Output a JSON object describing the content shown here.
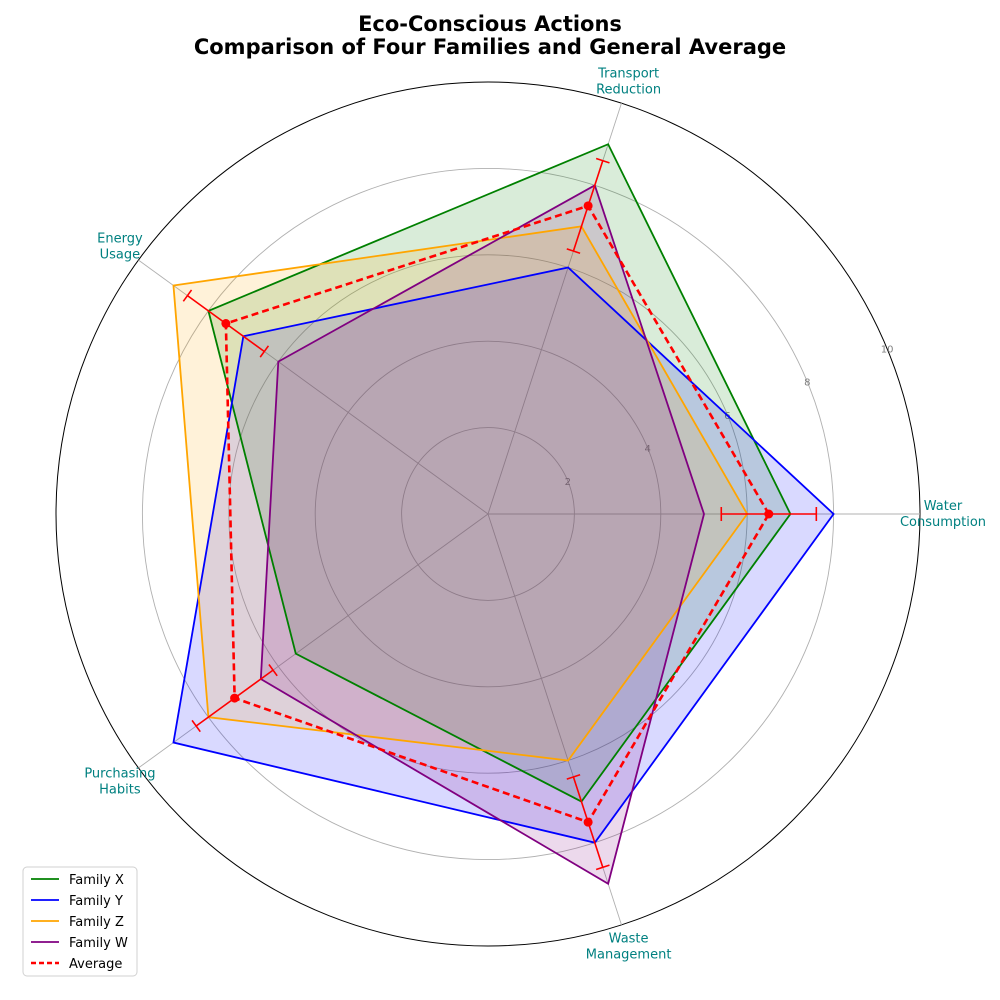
{
  "chart_data": {
    "type": "radar",
    "title_lines": [
      "Eco-Conscious Actions",
      "Comparison of Four Families and General Average"
    ],
    "axes": [
      {
        "lines": [
          "Water",
          "Consumption"
        ]
      },
      {
        "lines": [
          "Transport",
          "Reduction"
        ]
      },
      {
        "lines": [
          "Energy",
          "Usage"
        ]
      },
      {
        "lines": [
          "Purchasing",
          "Habits"
        ]
      },
      {
        "lines": [
          "Waste",
          "Management"
        ]
      }
    ],
    "rlim": [
      0,
      10
    ],
    "rticks": [
      2,
      4,
      6,
      8,
      10
    ],
    "grid": true,
    "legend_position": "lower-left",
    "series": [
      {
        "name": "Family X",
        "color": "#008000",
        "values": [
          7,
          9,
          8,
          5.5,
          7
        ]
      },
      {
        "name": "Family Y",
        "color": "#0000ff",
        "values": [
          8,
          6,
          7,
          9,
          8
        ]
      },
      {
        "name": "Family Z",
        "color": "#ffa500",
        "values": [
          6,
          7,
          9,
          8,
          6
        ]
      },
      {
        "name": "Family W",
        "color": "#800080",
        "values": [
          5,
          8,
          6,
          6.5,
          9
        ]
      }
    ],
    "average": {
      "name": "Average",
      "color": "#ff0000",
      "values": [
        6.5,
        7.5,
        7.5,
        7.25,
        7.5
      ],
      "errors": [
        1.1,
        1.1,
        1.1,
        1.1,
        1.1
      ]
    }
  }
}
